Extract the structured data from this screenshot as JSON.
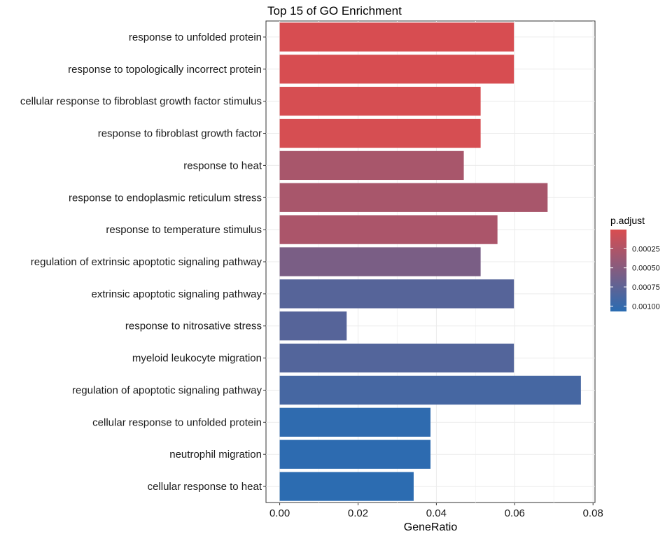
{
  "chart_data": {
    "type": "bar",
    "orientation": "horizontal",
    "title": "Top 15 of GO Enrichment",
    "xlabel": "GeneRatio",
    "ylabel": "",
    "xlim": [
      -0.0035,
      0.0805
    ],
    "xticks": [
      0,
      0.02,
      0.04,
      0.06,
      0.08
    ],
    "xtick_labels": [
      "0.00",
      "0.02",
      "0.04",
      "0.06",
      "0.08"
    ],
    "grid": true,
    "categories": [
      "response to unfolded protein",
      "response to topologically incorrect protein",
      "cellular response to fibroblast growth factor stimulus",
      "response to fibroblast growth factor",
      "response to heat",
      "response to endoplasmic reticulum stress",
      "response to temperature stimulus",
      "regulation of extrinsic apoptotic signaling pathway",
      "extrinsic apoptotic signaling pathway",
      "response to nitrosative stress",
      "myeloid leukocyte migration",
      "regulation of apoptotic signaling pathway",
      "cellular response to unfolded protein",
      "neutrophil migration",
      "cellular response to heat"
    ],
    "values": [
      0.0598,
      0.0598,
      0.0513,
      0.0513,
      0.047,
      0.0684,
      0.0556,
      0.0513,
      0.0598,
      0.0171,
      0.0598,
      0.0769,
      0.0385,
      0.0385,
      0.0342
    ],
    "color_values": [
      1e-05,
      1e-05,
      2e-05,
      2e-05,
      0.0003,
      0.0003,
      0.00028,
      0.00058,
      0.0008,
      0.0008,
      0.00082,
      0.0009,
      0.00104,
      0.00105,
      0.00106
    ],
    "legend": {
      "title": "p.adjust",
      "position": "right",
      "range": [
        0.0,
        0.00107
      ],
      "ticks": [
        0.00025,
        0.0005,
        0.00075,
        0.001
      ],
      "tick_labels": [
        "0.00025",
        "0.00050",
        "0.00075",
        "0.00100"
      ],
      "low_color": "#d94d50",
      "high_color": "#2a6cb2"
    }
  }
}
